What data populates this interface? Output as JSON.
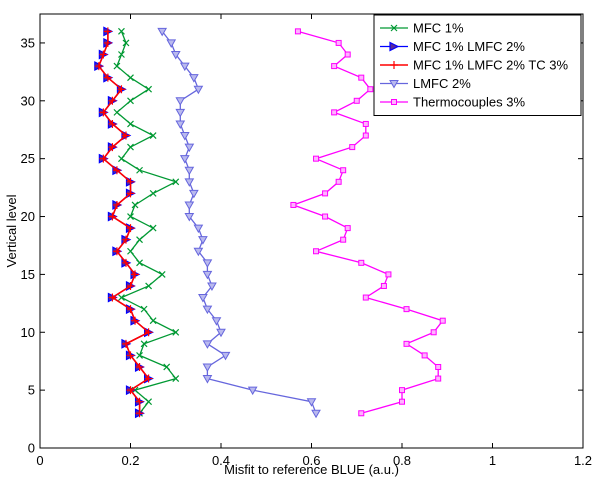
{
  "chart_data": {
    "type": "line",
    "title": "",
    "xlabel": "Misfit to reference BLUE (a.u.)",
    "ylabel": "Vertical level",
    "xlim": [
      0,
      1.2
    ],
    "ylim": [
      0,
      37.5
    ],
    "x_ticks": [
      "0",
      "0.2",
      "0.4",
      "0.6",
      "0.8",
      "1",
      "1.2"
    ],
    "y_ticks": [
      "0",
      "5",
      "10",
      "15",
      "20",
      "25",
      "30",
      "35"
    ],
    "grid": false,
    "legend_position": "top-right",
    "series": [
      {
        "name": "MFC 1%",
        "color": "#009933",
        "marker": "x",
        "points": [
          [
            0.22,
            3
          ],
          [
            0.24,
            4
          ],
          [
            0.21,
            5
          ],
          [
            0.3,
            6
          ],
          [
            0.28,
            7
          ],
          [
            0.22,
            8
          ],
          [
            0.23,
            9
          ],
          [
            0.3,
            10
          ],
          [
            0.25,
            11
          ],
          [
            0.23,
            12
          ],
          [
            0.18,
            13
          ],
          [
            0.24,
            14
          ],
          [
            0.27,
            15
          ],
          [
            0.22,
            16
          ],
          [
            0.2,
            17
          ],
          [
            0.22,
            18
          ],
          [
            0.25,
            19
          ],
          [
            0.2,
            20
          ],
          [
            0.21,
            21
          ],
          [
            0.25,
            22
          ],
          [
            0.3,
            23
          ],
          [
            0.22,
            24
          ],
          [
            0.18,
            25
          ],
          [
            0.2,
            26
          ],
          [
            0.25,
            27
          ],
          [
            0.2,
            28
          ],
          [
            0.17,
            29
          ],
          [
            0.2,
            30
          ],
          [
            0.24,
            31
          ],
          [
            0.2,
            32
          ],
          [
            0.17,
            33
          ],
          [
            0.18,
            34
          ],
          [
            0.19,
            35
          ],
          [
            0.18,
            36
          ]
        ]
      },
      {
        "name": "MFC 1% LMFC 2%",
        "color": "#0000ff",
        "marker": "triangle-right",
        "points": [
          [
            0.22,
            3
          ],
          [
            0.22,
            4
          ],
          [
            0.2,
            5
          ],
          [
            0.24,
            6
          ],
          [
            0.22,
            7
          ],
          [
            0.2,
            8
          ],
          [
            0.19,
            9
          ],
          [
            0.24,
            10
          ],
          [
            0.21,
            11
          ],
          [
            0.2,
            12
          ],
          [
            0.16,
            13
          ],
          [
            0.2,
            14
          ],
          [
            0.21,
            15
          ],
          [
            0.19,
            16
          ],
          [
            0.17,
            17
          ],
          [
            0.19,
            18
          ],
          [
            0.2,
            19
          ],
          [
            0.16,
            20
          ],
          [
            0.17,
            21
          ],
          [
            0.2,
            22
          ],
          [
            0.2,
            23
          ],
          [
            0.17,
            24
          ],
          [
            0.14,
            25
          ],
          [
            0.16,
            26
          ],
          [
            0.19,
            27
          ],
          [
            0.16,
            28
          ],
          [
            0.14,
            29
          ],
          [
            0.16,
            30
          ],
          [
            0.18,
            31
          ],
          [
            0.15,
            32
          ],
          [
            0.13,
            33
          ],
          [
            0.14,
            34
          ],
          [
            0.15,
            35
          ],
          [
            0.15,
            36
          ]
        ]
      },
      {
        "name": "MFC 1% LMFC 2% TC 3%",
        "color": "#ff0000",
        "marker": "plus",
        "points": [
          [
            0.22,
            3
          ],
          [
            0.22,
            4
          ],
          [
            0.2,
            5
          ],
          [
            0.24,
            6
          ],
          [
            0.22,
            7
          ],
          [
            0.2,
            8
          ],
          [
            0.19,
            9
          ],
          [
            0.24,
            10
          ],
          [
            0.21,
            11
          ],
          [
            0.2,
            12
          ],
          [
            0.16,
            13
          ],
          [
            0.2,
            14
          ],
          [
            0.21,
            15
          ],
          [
            0.19,
            16
          ],
          [
            0.17,
            17
          ],
          [
            0.19,
            18
          ],
          [
            0.2,
            19
          ],
          [
            0.16,
            20
          ],
          [
            0.17,
            21
          ],
          [
            0.2,
            22
          ],
          [
            0.2,
            23
          ],
          [
            0.17,
            24
          ],
          [
            0.14,
            25
          ],
          [
            0.16,
            26
          ],
          [
            0.19,
            27
          ],
          [
            0.16,
            28
          ],
          [
            0.14,
            29
          ],
          [
            0.16,
            30
          ],
          [
            0.18,
            31
          ],
          [
            0.15,
            32
          ],
          [
            0.13,
            33
          ],
          [
            0.14,
            34
          ],
          [
            0.15,
            35
          ],
          [
            0.15,
            36
          ]
        ]
      },
      {
        "name": "LMFC 2%",
        "color": "#6666dd",
        "marker": "triangle-down",
        "points": [
          [
            0.61,
            3
          ],
          [
            0.6,
            4
          ],
          [
            0.47,
            5
          ],
          [
            0.37,
            6
          ],
          [
            0.37,
            7
          ],
          [
            0.41,
            8
          ],
          [
            0.37,
            9
          ],
          [
            0.4,
            10
          ],
          [
            0.39,
            11
          ],
          [
            0.37,
            12
          ],
          [
            0.36,
            13
          ],
          [
            0.38,
            14
          ],
          [
            0.37,
            15
          ],
          [
            0.37,
            16
          ],
          [
            0.35,
            17
          ],
          [
            0.36,
            18
          ],
          [
            0.35,
            19
          ],
          [
            0.33,
            20
          ],
          [
            0.33,
            21
          ],
          [
            0.34,
            22
          ],
          [
            0.33,
            23
          ],
          [
            0.33,
            24
          ],
          [
            0.32,
            25
          ],
          [
            0.33,
            26
          ],
          [
            0.32,
            27
          ],
          [
            0.31,
            28
          ],
          [
            0.31,
            29
          ],
          [
            0.31,
            30
          ],
          [
            0.35,
            31
          ],
          [
            0.34,
            32
          ],
          [
            0.32,
            33
          ],
          [
            0.3,
            34
          ],
          [
            0.29,
            35
          ],
          [
            0.27,
            36
          ]
        ]
      },
      {
        "name": "Thermocouples 3%",
        "color": "#ff00ff",
        "marker": "square",
        "points": [
          [
            0.71,
            3
          ],
          [
            0.8,
            4
          ],
          [
            0.8,
            5
          ],
          [
            0.88,
            6
          ],
          [
            0.88,
            7
          ],
          [
            0.85,
            8
          ],
          [
            0.81,
            9
          ],
          [
            0.87,
            10
          ],
          [
            0.89,
            11
          ],
          [
            0.81,
            12
          ],
          [
            0.72,
            13
          ],
          [
            0.76,
            14
          ],
          [
            0.77,
            15
          ],
          [
            0.71,
            16
          ],
          [
            0.61,
            17
          ],
          [
            0.67,
            18
          ],
          [
            0.68,
            19
          ],
          [
            0.63,
            20
          ],
          [
            0.56,
            21
          ],
          [
            0.63,
            22
          ],
          [
            0.66,
            23
          ],
          [
            0.67,
            24
          ],
          [
            0.61,
            25
          ],
          [
            0.69,
            26
          ],
          [
            0.72,
            27
          ],
          [
            0.72,
            28
          ],
          [
            0.65,
            29
          ],
          [
            0.7,
            30
          ],
          [
            0.73,
            31
          ],
          [
            0.71,
            32
          ],
          [
            0.65,
            33
          ],
          [
            0.68,
            34
          ],
          [
            0.66,
            35
          ],
          [
            0.57,
            36
          ]
        ]
      }
    ]
  }
}
